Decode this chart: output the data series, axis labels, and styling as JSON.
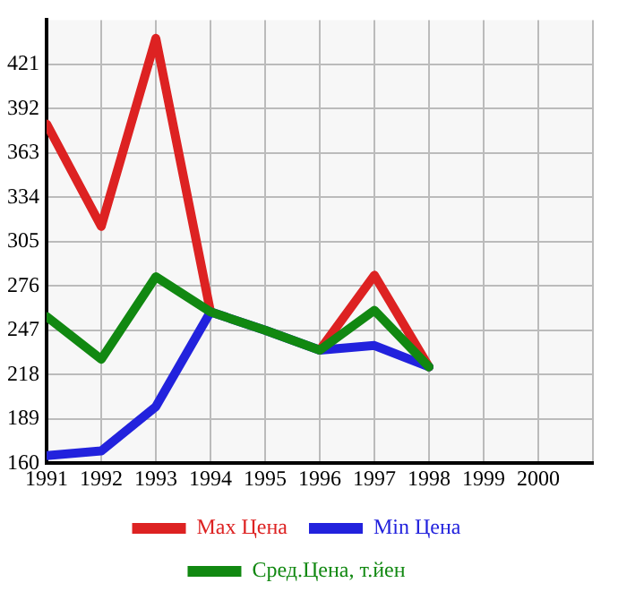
{
  "chart_data": {
    "type": "line",
    "x": [
      1991,
      1992,
      1993,
      1994,
      1995,
      1996,
      1997,
      1998
    ],
    "xlim": [
      1991,
      2001
    ],
    "xticks": [
      1991,
      1992,
      1993,
      1994,
      1995,
      1996,
      1997,
      1998,
      1999,
      2000,
      {
        "value": 2001,
        "label": null
      }
    ],
    "ylim": [
      160,
      450
    ],
    "yticks": [
      160,
      189,
      218,
      247,
      276,
      305,
      334,
      363,
      392,
      421
    ],
    "grid": true,
    "legend": "bottom",
    "marker": "none",
    "line_style": "solid",
    "series": [
      {
        "name": "Max Цена",
        "color": "#dd2222",
        "values": [
          382,
          315,
          438,
          259,
          null,
          234,
          283,
          223
        ]
      },
      {
        "name": "Min Цена",
        "color": "#2222dd",
        "values": [
          165,
          168,
          197,
          259,
          247,
          234,
          237,
          223
        ]
      },
      {
        "name": "Сред.Цена, т.йен",
        "color": "#118811",
        "values": [
          256,
          228,
          282,
          259,
          247,
          234,
          260,
          223
        ]
      }
    ]
  }
}
